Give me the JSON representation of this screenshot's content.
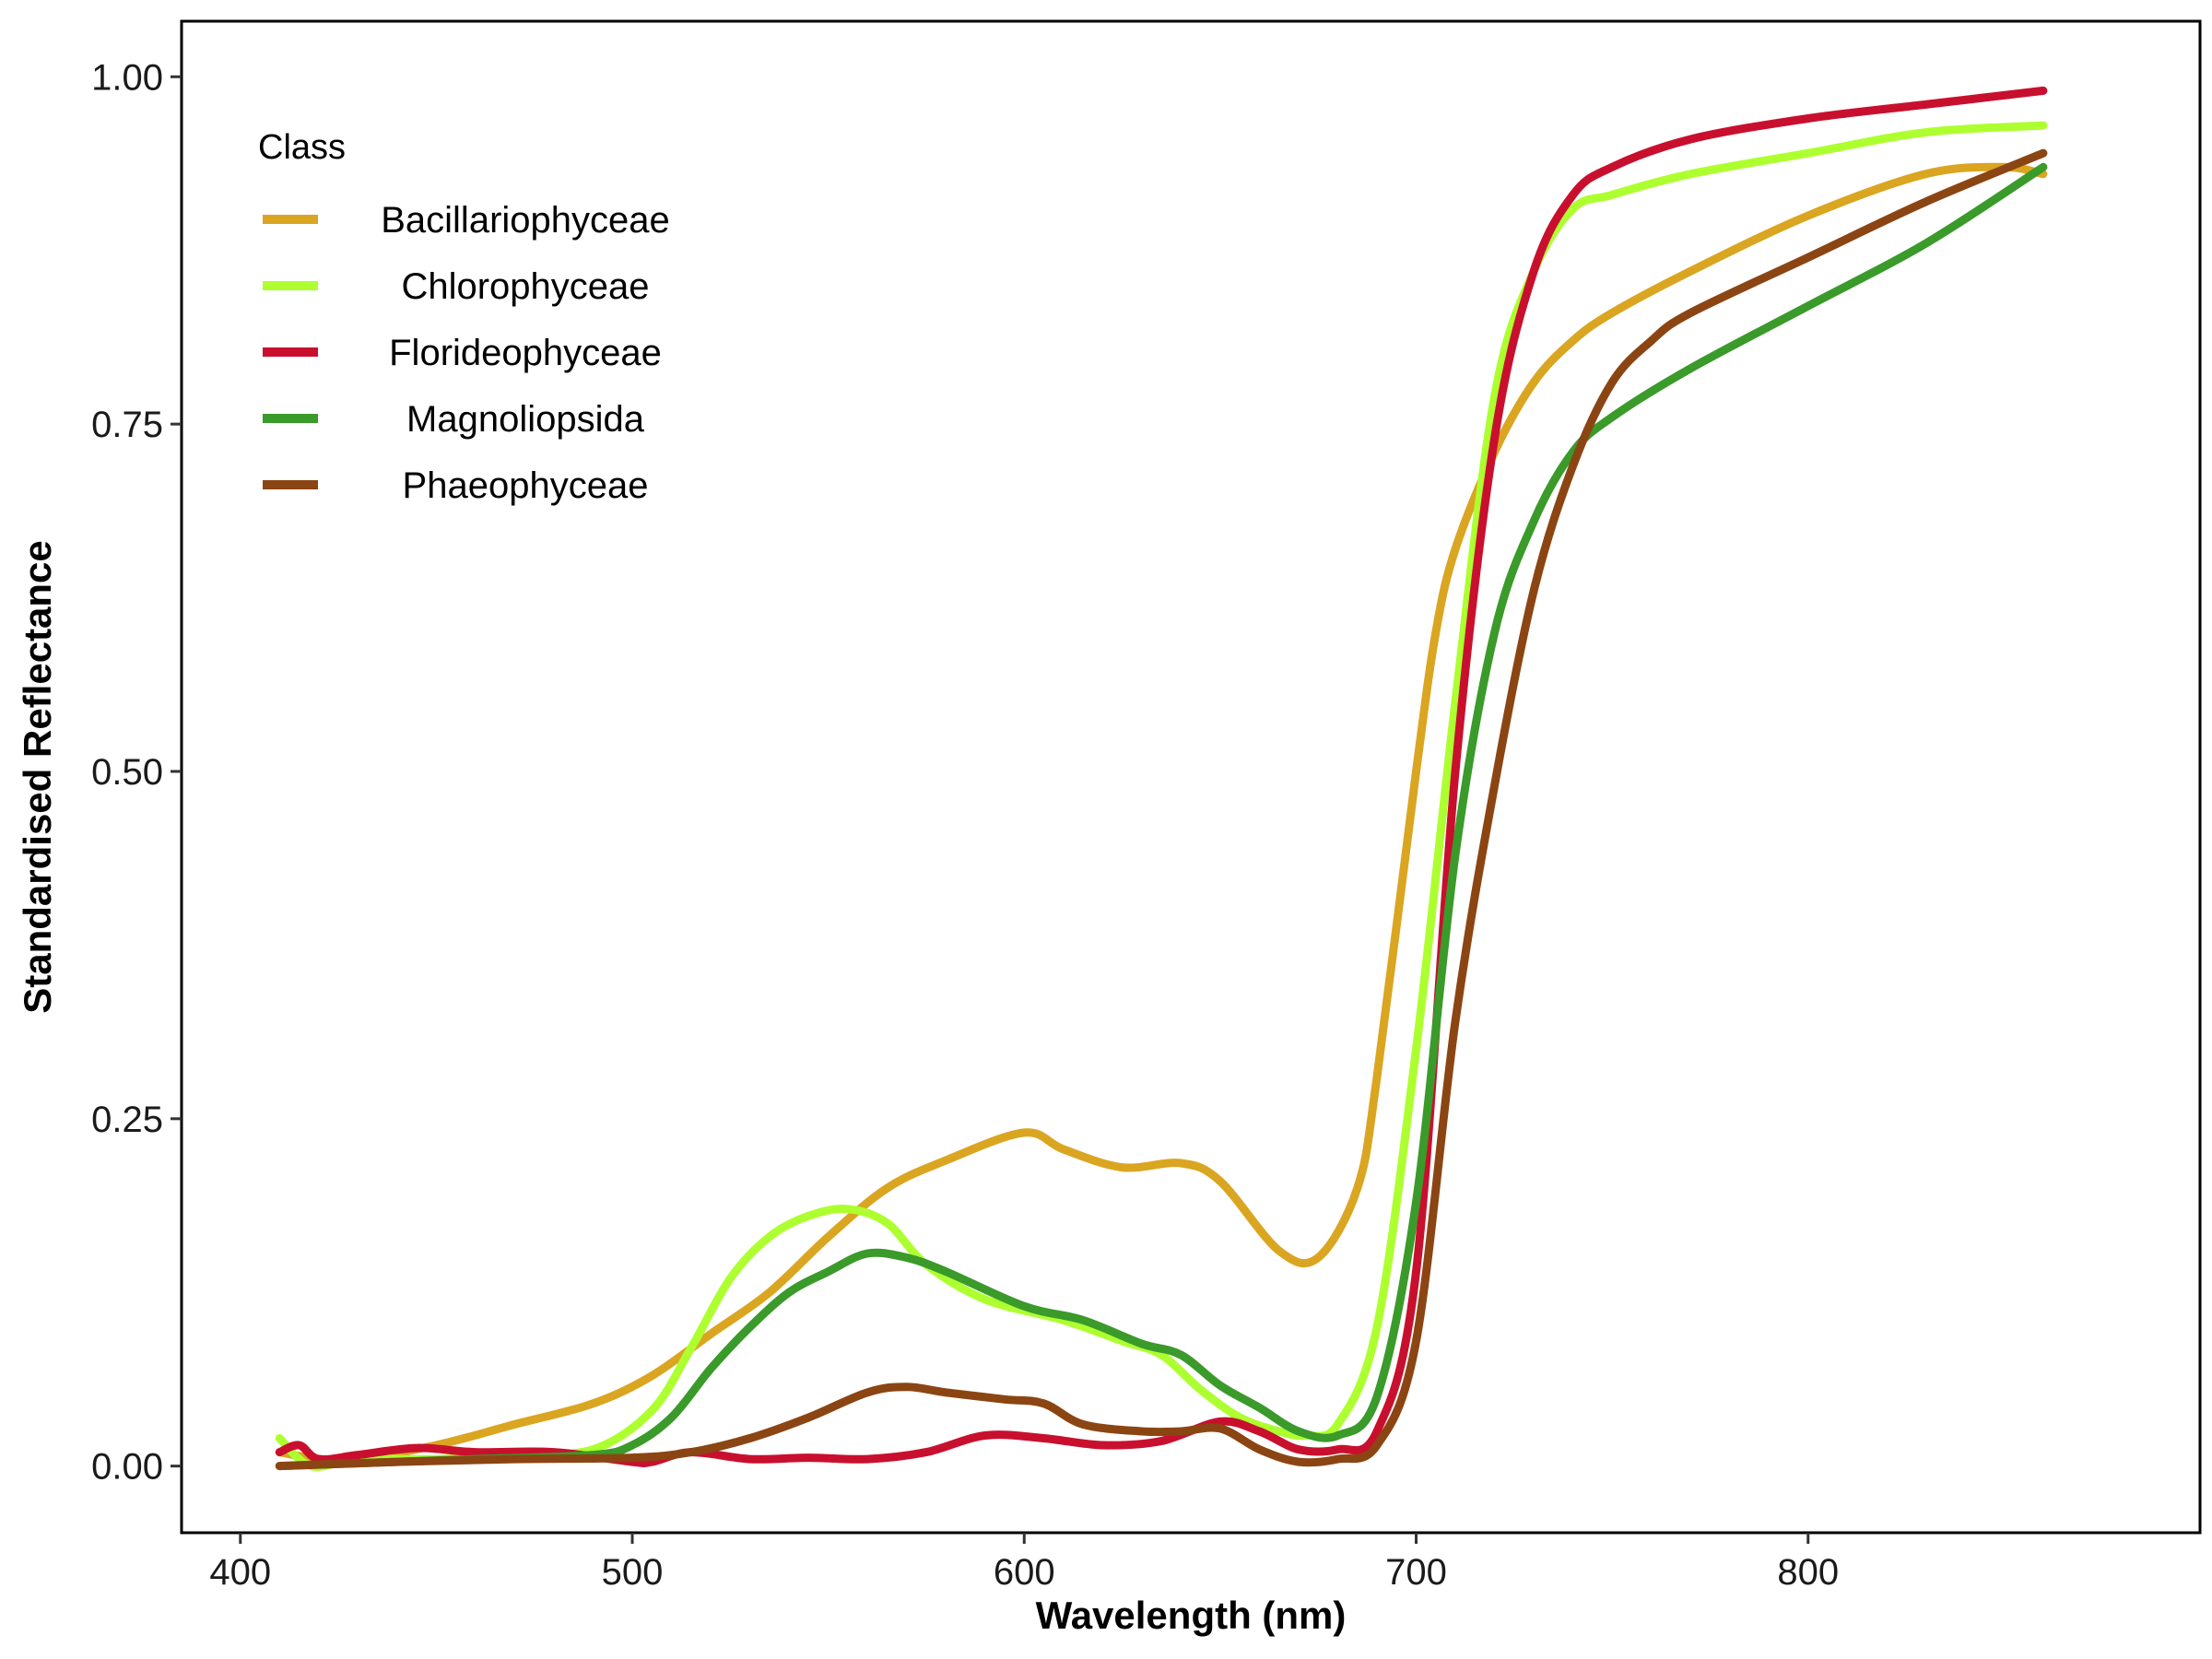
{
  "chart_data": {
    "type": "line",
    "xlabel": "Wavelength (nm)",
    "ylabel": "Standardised Reflectance",
    "xlim": [
      385,
      900
    ],
    "ylim": [
      -0.048,
      1.04
    ],
    "x_ticks": [
      400,
      500,
      600,
      700,
      800
    ],
    "x_tick_labels": [
      "400",
      "500",
      "600",
      "700",
      "800"
    ],
    "y_ticks": [
      0,
      0.25,
      0.5,
      0.75,
      1.0
    ],
    "y_tick_labels": [
      "0.00",
      "0.25",
      "0.50",
      "0.75",
      "1.00"
    ],
    "grid": false,
    "legend": {
      "title": "Class",
      "placement": "top-left"
    },
    "series": [
      {
        "name": "Bacillariophyceae",
        "color": "#DAA520",
        "x": [
          410,
          420,
          430,
          450,
          470,
          490,
          505,
          520,
          535,
          550,
          565,
          580,
          600,
          610,
          625,
          640,
          650,
          665,
          675,
          685,
          690,
          700,
          705,
          710,
          720,
          730,
          740,
          750,
          770,
          800,
          830,
          850,
          860
        ],
        "y": [
          0.01,
          0.005,
          0.005,
          0.015,
          0.03,
          0.045,
          0.065,
          0.095,
          0.125,
          0.165,
          0.2,
          0.22,
          0.24,
          0.228,
          0.215,
          0.218,
          0.205,
          0.155,
          0.15,
          0.2,
          0.28,
          0.5,
          0.6,
          0.66,
          0.73,
          0.78,
          0.81,
          0.83,
          0.86,
          0.9,
          0.93,
          0.935,
          0.93
        ]
      },
      {
        "name": "Chlorophyceae",
        "color": "#ADFF2F",
        "x": [
          410,
          418,
          430,
          450,
          470,
          490,
          505,
          515,
          525,
          535,
          545,
          555,
          565,
          575,
          590,
          610,
          625,
          635,
          645,
          655,
          665,
          672,
          680,
          690,
          700,
          710,
          720,
          730,
          740,
          750,
          770,
          800,
          830,
          860
        ],
        "y": [
          0.02,
          0.0,
          0.005,
          0.005,
          0.008,
          0.012,
          0.04,
          0.085,
          0.135,
          0.165,
          0.18,
          0.185,
          0.175,
          0.145,
          0.12,
          0.105,
          0.09,
          0.08,
          0.055,
          0.035,
          0.025,
          0.022,
          0.03,
          0.1,
          0.3,
          0.55,
          0.77,
          0.86,
          0.905,
          0.915,
          0.93,
          0.945,
          0.96,
          0.965
        ]
      },
      {
        "name": "Florideophyceae",
        "color": "#C8102E",
        "x": [
          410,
          415,
          420,
          430,
          445,
          460,
          480,
          500,
          505,
          515,
          530,
          545,
          560,
          575,
          590,
          605,
          620,
          635,
          650,
          660,
          670,
          680,
          690,
          700,
          710,
          720,
          730,
          740,
          750,
          770,
          800,
          830,
          845,
          860
        ],
        "y": [
          0.01,
          0.015,
          0.005,
          0.008,
          0.013,
          0.01,
          0.01,
          0.003,
          0.003,
          0.01,
          0.005,
          0.006,
          0.005,
          0.01,
          0.022,
          0.02,
          0.015,
          0.018,
          0.032,
          0.025,
          0.012,
          0.012,
          0.025,
          0.14,
          0.5,
          0.74,
          0.86,
          0.915,
          0.935,
          0.955,
          0.97,
          0.98,
          0.985,
          0.99
        ]
      },
      {
        "name": "Magnoliopsida",
        "color": "#3A9A2A",
        "x": [
          410,
          430,
          460,
          490,
          500,
          510,
          520,
          530,
          540,
          550,
          560,
          570,
          580,
          600,
          615,
          630,
          640,
          650,
          660,
          670,
          680,
          690,
          700,
          710,
          720,
          730,
          740,
          750,
          770,
          800,
          830,
          860
        ],
        "y": [
          0.0,
          0.002,
          0.005,
          0.008,
          0.015,
          0.035,
          0.07,
          0.1,
          0.125,
          0.14,
          0.153,
          0.15,
          0.14,
          0.115,
          0.105,
          0.088,
          0.08,
          0.058,
          0.042,
          0.025,
          0.022,
          0.05,
          0.19,
          0.44,
          0.6,
          0.68,
          0.73,
          0.755,
          0.79,
          0.835,
          0.88,
          0.935
        ]
      },
      {
        "name": "Phaeophyceae",
        "color": "#8B4513",
        "x": [
          410,
          440,
          470,
          500,
          515,
          530,
          545,
          560,
          570,
          580,
          595,
          605,
          615,
          630,
          640,
          650,
          660,
          670,
          680,
          690,
          700,
          710,
          720,
          730,
          740,
          750,
          760,
          770,
          800,
          830,
          860
        ],
        "y": [
          0.0,
          0.003,
          0.005,
          0.006,
          0.01,
          0.02,
          0.035,
          0.053,
          0.057,
          0.053,
          0.048,
          0.045,
          0.03,
          0.025,
          0.025,
          0.027,
          0.012,
          0.003,
          0.005,
          0.015,
          0.09,
          0.32,
          0.49,
          0.63,
          0.72,
          0.78,
          0.81,
          0.83,
          0.87,
          0.91,
          0.945
        ]
      }
    ]
  }
}
